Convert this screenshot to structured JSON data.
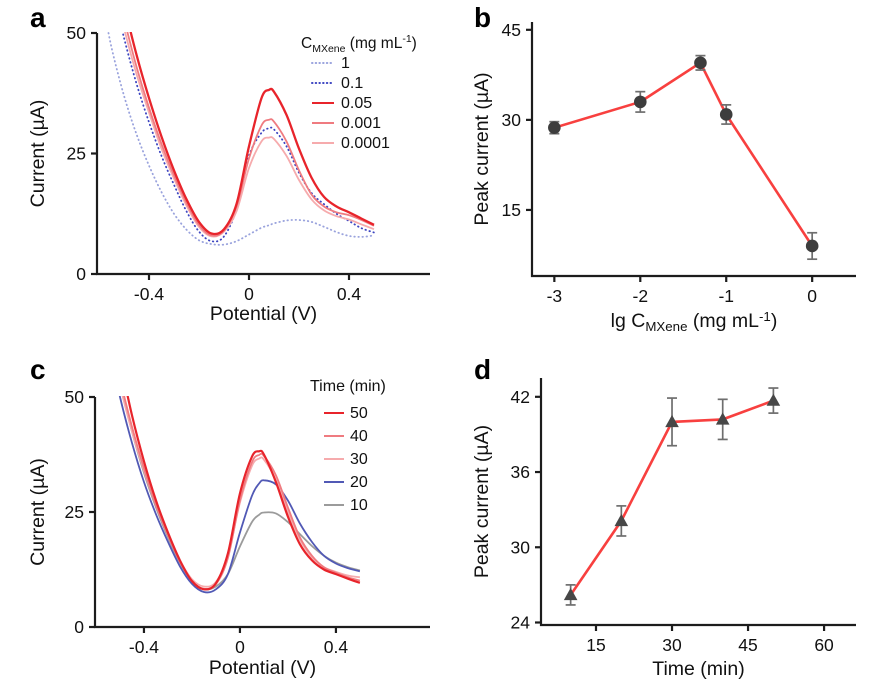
{
  "panels": {
    "a": {
      "letter": "a"
    },
    "b": {
      "letter": "b"
    },
    "c": {
      "letter": "c"
    },
    "d": {
      "letter": "d"
    }
  },
  "colors": {
    "background": "#ffffff",
    "axis": "#1c1c1c",
    "red": "#e8242b",
    "scatter_line_red": "#f8403f",
    "salmon": "#ef7b80",
    "light_pink": "#f6abad",
    "blue_dotted": "#3d45c1",
    "light_blue_dotted": "#9aa3dd",
    "slate_blue": "#5159b5",
    "gray": "#9b9b9b",
    "marker_dark": "#3d3d3d",
    "error_bar": "#6e6e6e"
  },
  "chart_data": [
    {
      "panel": "a",
      "type": "line",
      "xlabel": "Potential (V)",
      "ylabel": "Current (µA)",
      "xlim": [
        -0.608,
        0.724
      ],
      "ylim": [
        0,
        50
      ],
      "xticks": [
        -0.4,
        0,
        0.4
      ],
      "yticks": [
        0,
        25,
        50
      ],
      "grid": false,
      "legend": {
        "title": "C_[MXene] (mg mL^[-1])",
        "position": "top-right"
      },
      "x": [
        -0.58,
        -0.55,
        -0.5,
        -0.45,
        -0.4,
        -0.35,
        -0.3,
        -0.25,
        -0.2,
        -0.15,
        -0.1,
        -0.05,
        0,
        0.05,
        0.08,
        0.1,
        0.15,
        0.2,
        0.25,
        0.3,
        0.35,
        0.4,
        0.45,
        0.5
      ],
      "series": [
        {
          "name": "1",
          "color": "#9aa3dd",
          "dash": "dotted",
          "z": 0,
          "y": [
            55,
            47,
            37,
            29,
            22.5,
            17,
            12.5,
            9.2,
            7.0,
            6.2,
            6.1,
            6.8,
            8.2,
            9.6,
            10.1,
            10.5,
            11.1,
            11.2,
            10.8,
            9.8,
            8.7,
            7.9,
            7.7,
            8.0
          ]
        },
        {
          "name": "0.1",
          "color": "#3d45c1",
          "dash": "dotted",
          "z": 1,
          "y": [
            68,
            60,
            49,
            39.5,
            31.5,
            24.5,
            18.5,
            13,
            8.8,
            6.8,
            7.8,
            13.5,
            24.5,
            29.3,
            30.2,
            30.0,
            26.5,
            21,
            16.8,
            14.5,
            12.5,
            11,
            9.5,
            8.6
          ]
        },
        {
          "name": "0.05",
          "color": "#e8242b",
          "dash": "solid",
          "width": 2.3,
          "z": 4,
          "y": [
            76,
            68,
            56,
            45.5,
            36.5,
            28.5,
            21.5,
            15.5,
            10.8,
            8.4,
            9.3,
            14.5,
            26.5,
            36.5,
            38.2,
            37.8,
            33,
            26,
            20,
            16,
            14,
            12.8,
            11.5,
            10.2
          ]
        },
        {
          "name": "0.001",
          "color": "#ef7b80",
          "dash": "solid",
          "z": 3,
          "y": [
            72,
            64,
            53,
            43,
            34.5,
            27,
            20.5,
            14.8,
            10.2,
            8.0,
            9.0,
            14,
            24,
            30.8,
            32.0,
            31.6,
            27.5,
            21.5,
            16.5,
            14,
            12.8,
            12.2,
            11.2,
            10.0
          ]
        },
        {
          "name": "0.0001",
          "color": "#f6abad",
          "dash": "solid",
          "z": 2,
          "y": [
            70,
            62,
            51,
            41.5,
            33.5,
            26,
            19.8,
            14.2,
            9.8,
            7.8,
            8.8,
            13,
            22,
            27.5,
            28.3,
            28.0,
            24.5,
            19.5,
            15.5,
            13.2,
            12,
            11.3,
            10.3,
            9.3
          ]
        }
      ]
    },
    {
      "panel": "b",
      "type": "scatter-line",
      "xlabel": "lg C_[MXene] (mg mL^[-1])",
      "ylabel": "Peak current (µA)",
      "xlim": [
        -3.26,
        0.51
      ],
      "ylim": [
        4,
        46.3
      ],
      "xticks": [
        -3,
        -2,
        -1,
        0
      ],
      "yticks": [
        15,
        30,
        45
      ],
      "grid": false,
      "marker": "circle",
      "line_color": "#f8403f",
      "marker_color": "#3d3d3d",
      "error_color": "#6e6e6e",
      "x": [
        -3,
        -2,
        -1.3,
        -1,
        0
      ],
      "y": [
        28.7,
        33.0,
        39.5,
        30.9,
        9.0
      ],
      "yerr": [
        1.0,
        1.7,
        1.2,
        1.6,
        2.2
      ]
    },
    {
      "panel": "c",
      "type": "line",
      "xlabel": "Potential (V)",
      "ylabel": "Current (µA)",
      "xlim": [
        -0.604,
        0.792
      ],
      "ylim": [
        0,
        50
      ],
      "xticks": [
        -0.4,
        0,
        0.4
      ],
      "yticks": [
        0,
        25,
        50
      ],
      "grid": false,
      "legend": {
        "title": "Time (min)",
        "position": "top-right"
      },
      "x": [
        -0.58,
        -0.55,
        -0.5,
        -0.45,
        -0.4,
        -0.35,
        -0.3,
        -0.25,
        -0.2,
        -0.15,
        -0.1,
        -0.05,
        0,
        0.05,
        0.08,
        0.1,
        0.15,
        0.2,
        0.25,
        0.3,
        0.35,
        0.4,
        0.45,
        0.5
      ],
      "series": [
        {
          "name": "50",
          "color": "#e8242b",
          "dash": "solid",
          "width": 2.2,
          "z": 4,
          "y": [
            79,
            70,
            58,
            46,
            36,
            27.5,
            20.5,
            14.5,
            10,
            8.2,
            9.5,
            16,
            29,
            37,
            38.2,
            37.5,
            31.5,
            24,
            18,
            14.5,
            12.5,
            11.5,
            10.5,
            9.6
          ]
        },
        {
          "name": "40",
          "color": "#ef7b80",
          "dash": "solid",
          "z": 3,
          "y": [
            74,
            66,
            54,
            43.5,
            34.5,
            26.5,
            20,
            14.2,
            10,
            8.3,
            9.3,
            15,
            27.5,
            35.8,
            37.4,
            37.2,
            33,
            26,
            19.5,
            15.5,
            13,
            11.8,
            10.8,
            10.1
          ]
        },
        {
          "name": "30",
          "color": "#f6abad",
          "dash": "solid",
          "z": 2,
          "y": [
            71,
            64,
            52.5,
            42.5,
            34,
            26.5,
            20,
            14.5,
            10.4,
            8.8,
            9.8,
            15.5,
            27,
            35,
            36.6,
            36.4,
            32,
            25,
            19,
            15.2,
            13,
            12,
            11.2,
            10.8
          ]
        },
        {
          "name": "20",
          "color": "#5159b5",
          "dash": "solid",
          "z": 1,
          "y": [
            70,
            62,
            50,
            40,
            31.5,
            24.5,
            18.5,
            13.2,
            9.4,
            7.6,
            8.2,
            11.5,
            20.5,
            28.5,
            31.2,
            31.9,
            31.0,
            27.5,
            22.5,
            18.5,
            15.5,
            13.8,
            12.8,
            12.1
          ]
        },
        {
          "name": "10",
          "color": "#9b9b9b",
          "dash": "solid",
          "z": 0,
          "y": [
            73,
            65,
            53,
            42.5,
            33.5,
            26,
            19.5,
            14,
            10,
            8.2,
            8.8,
            11.5,
            17.5,
            22.8,
            24.4,
            24.9,
            24.7,
            22.8,
            20.2,
            17.6,
            15.5,
            14,
            13,
            12.3
          ]
        }
      ]
    },
    {
      "panel": "d",
      "type": "scatter-line",
      "xlabel": "Time (min)",
      "ylabel": "Peak current (µA)",
      "xlim": [
        4.15,
        66.3
      ],
      "ylim": [
        23.8,
        43.5
      ],
      "xticks": [
        15,
        30,
        45,
        60
      ],
      "yticks": [
        24,
        30,
        36,
        42
      ],
      "grid": false,
      "marker": "triangle",
      "line_color": "#f8403f",
      "marker_color": "#474747",
      "error_color": "#6e6e6e",
      "x": [
        10,
        20,
        30,
        40,
        50
      ],
      "y": [
        26.2,
        32.1,
        40.0,
        40.2,
        41.7
      ],
      "yerr": [
        0.8,
        1.2,
        1.9,
        1.6,
        1.0
      ]
    }
  ]
}
